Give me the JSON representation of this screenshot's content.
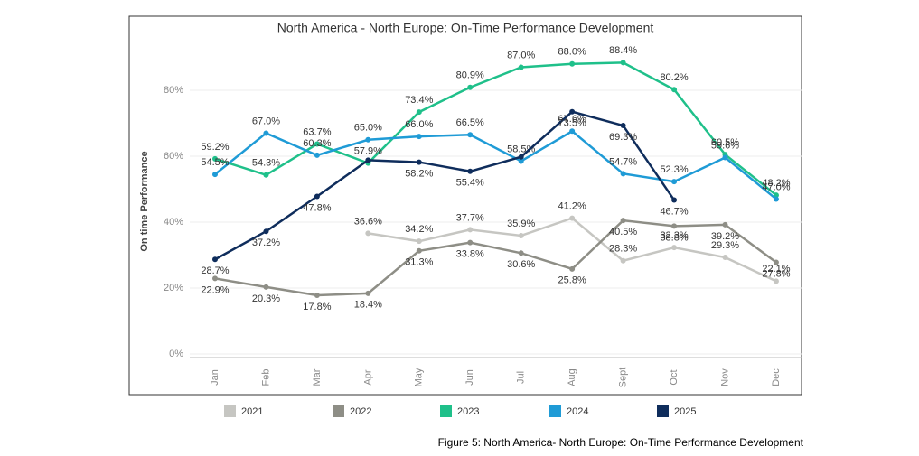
{
  "chart_data": {
    "type": "line",
    "title": "North America - North Europe: On-Time Performance Development",
    "y_label": "On time Performance",
    "caption": "Figure 5: North America- North Europe: On-Time Performance Development",
    "categories": [
      "Jan",
      "Feb",
      "Mar",
      "Apr",
      "May",
      "Jun",
      "Jul",
      "Aug",
      "Sept",
      "Oct",
      "Nov",
      "Dec"
    ],
    "ylim": [
      0,
      94
    ],
    "yticks": [
      {
        "value": 0,
        "label": "0%"
      },
      {
        "value": 20,
        "label": "20%"
      },
      {
        "value": 40,
        "label": "40%"
      },
      {
        "value": 60,
        "label": "60%"
      },
      {
        "value": 80,
        "label": "80%"
      }
    ],
    "grid": true,
    "legend": "bottom",
    "series": [
      {
        "name": "2021",
        "color": "#c6c6c2",
        "values": [
          null,
          null,
          null,
          36.6,
          34.2,
          37.7,
          35.9,
          41.2,
          28.3,
          32.3,
          29.3,
          22.1
        ],
        "value_labels": [
          null,
          null,
          null,
          "36.6%",
          "34.2%",
          "37.7%",
          "35.9%",
          "41.2%",
          "28.3%",
          "32.3%",
          "29.3%",
          "22.1%"
        ]
      },
      {
        "name": "2022",
        "color": "#8e8e86",
        "values": [
          22.9,
          20.3,
          17.8,
          18.4,
          31.3,
          33.8,
          30.6,
          25.8,
          40.5,
          38.8,
          39.2,
          27.8
        ],
        "value_labels": [
          "22.9%",
          "20.3%",
          "17.8%",
          "18.4%",
          "31.3%",
          "33.8%",
          "30.6%",
          "25.8%",
          "40.5%",
          "38.8%",
          "39.2%",
          "27.8%"
        ]
      },
      {
        "name": "2023",
        "color": "#1fc08a",
        "values": [
          59.2,
          54.3,
          63.7,
          57.9,
          73.4,
          80.9,
          87.0,
          88.0,
          88.4,
          80.2,
          60.5,
          48.2
        ],
        "value_labels": [
          "59.2%",
          "54.3%",
          "63.7%",
          "57.9%",
          "73.4%",
          "80.9%",
          "87.0%",
          "88.0%",
          "88.4%",
          "80.2%",
          "60.5%",
          "48.2%"
        ]
      },
      {
        "name": "2024",
        "color": "#1f9bd6",
        "values": [
          54.5,
          67.0,
          60.3,
          65.0,
          66.0,
          66.5,
          58.5,
          67.6,
          54.7,
          52.3,
          59.6,
          47.0
        ],
        "value_labels": [
          "54.5%",
          "67.0%",
          "60.3%",
          "65.0%",
          "66.0%",
          "66.5%",
          "58.5%",
          "67.6%",
          "54.7%",
          "52.3%",
          "59.6%",
          "47.0%"
        ]
      },
      {
        "name": "2025",
        "color": "#0f2d5c",
        "values": [
          28.7,
          37.2,
          47.8,
          58.8,
          58.2,
          55.4,
          59.8,
          73.5,
          69.3,
          46.7,
          null,
          null
        ],
        "value_labels": [
          "28.7%",
          "37.2%",
          "47.8%",
          null,
          "58.2%",
          "55.4%",
          null,
          "73.5%",
          "69.3%",
          "46.7%",
          null,
          null
        ]
      }
    ]
  }
}
